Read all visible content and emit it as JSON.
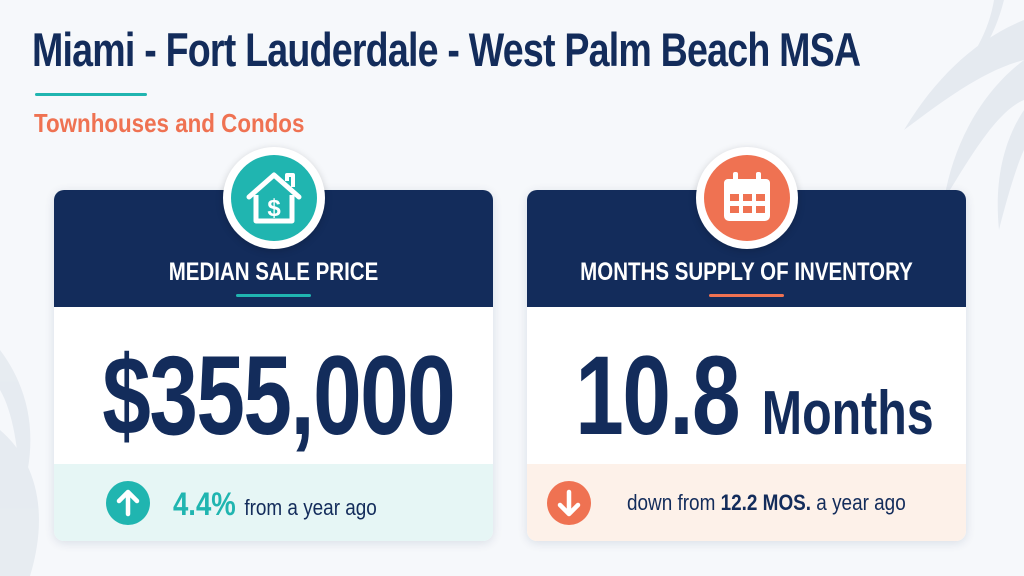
{
  "header": {
    "title": "Miami - Fort Lauderdale - West Palm Beach MSA",
    "subtitle": "Townhouses and Condos"
  },
  "colors": {
    "navy": "#132c5b",
    "teal": "#20b5b0",
    "coral": "#ef7252",
    "background": "#f6f8fb"
  },
  "cards": [
    {
      "icon": "house-dollar-icon",
      "label": "MEDIAN SALE PRICE",
      "value": "$355,000",
      "change_icon": "arrow-up-icon",
      "change_pct": "4.4%",
      "change_text": "from a year ago"
    },
    {
      "icon": "calendar-icon",
      "label": "MONTHS SUPPLY OF INVENTORY",
      "value": "10.8",
      "unit": "Months",
      "change_icon": "arrow-down-icon",
      "change_prefix": "down from",
      "change_value": "12.2 MOS.",
      "change_suffix": "a year ago"
    }
  ]
}
